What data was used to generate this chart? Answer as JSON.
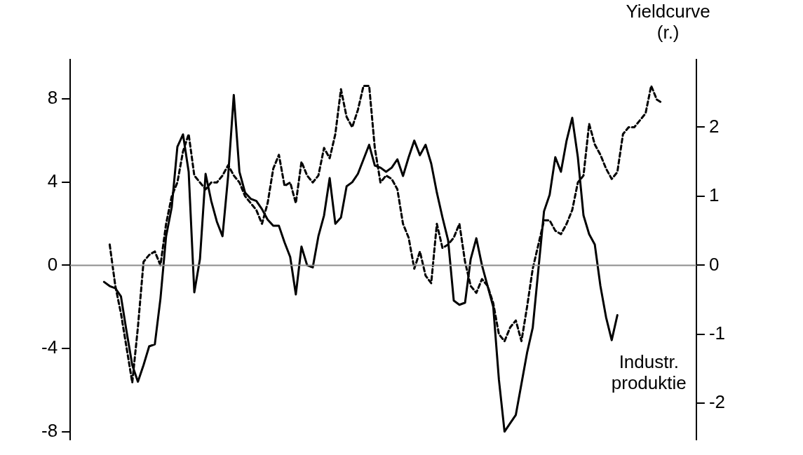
{
  "chart_data": {
    "type": "line",
    "categories": [
      null,
      null,
      null,
      null,
      null,
      null,
      null,
      null,
      null,
      null,
      null,
      null,
      null,
      null,
      null,
      null,
      null,
      null,
      null,
      null,
      null,
      null,
      null,
      null,
      null,
      null,
      null,
      null,
      null,
      null,
      null,
      null,
      null,
      null,
      null,
      null,
      null,
      null,
      null,
      null,
      null,
      null,
      null,
      null,
      null,
      null,
      null,
      null,
      null,
      null,
      null,
      null,
      null,
      null,
      null,
      null,
      null,
      null,
      null,
      null,
      null,
      null,
      null,
      null,
      null,
      null,
      null,
      null,
      null,
      null,
      null,
      null,
      null,
      null,
      null,
      null,
      null,
      null,
      null,
      null,
      null,
      null,
      null,
      null,
      null,
      null,
      null,
      null,
      null,
      null,
      null,
      null,
      null,
      null,
      null,
      null,
      null,
      null,
      null,
      null,
      null,
      null,
      null,
      null,
      null,
      null,
      null,
      null,
      null,
      null,
      null,
      null
    ],
    "series": [
      {
        "name": "Industr. produktie",
        "color": "#000000",
        "line_style": "solid",
        "axis": "y",
        "values": [
          null,
          null,
          null,
          null,
          null,
          null,
          -0.8,
          -1.0,
          -1.1,
          -1.5,
          -3.2,
          -4.8,
          -5.6,
          -4.8,
          -3.9,
          -3.8,
          -1.6,
          1.4,
          2.8,
          5.7,
          6.3,
          4.5,
          -1.3,
          0.3,
          4.4,
          3.1,
          2.1,
          1.4,
          4.3,
          8.2,
          4.5,
          3.5,
          3.2,
          3.1,
          2.7,
          2.2,
          1.9,
          1.9,
          1.1,
          0.4,
          -1.4,
          0.9,
          0.0,
          -0.1,
          1.4,
          2.4,
          4.2,
          2.0,
          2.3,
          3.8,
          4.0,
          4.4,
          5.1,
          5.8,
          4.8,
          4.7,
          4.5,
          4.7,
          5.1,
          4.3,
          5.2,
          6.0,
          5.3,
          5.8,
          4.9,
          3.5,
          2.3,
          1.2,
          -1.7,
          -1.9,
          -1.8,
          0.3,
          1.3,
          0.0,
          -1.0,
          -2.0,
          -5.5,
          -8.0,
          -7.6,
          -7.2,
          -5.7,
          -4.2,
          -3.0,
          -0.2,
          2.6,
          3.4,
          5.2,
          4.5,
          6.0,
          7.1,
          5.2,
          2.4,
          1.5,
          1.0,
          -1.0,
          -2.5,
          -3.6,
          -2.4,
          null,
          null,
          null,
          null,
          null,
          null,
          null,
          null,
          null,
          null,
          null,
          null,
          null,
          null
        ]
      },
      {
        "name": "Yieldcurve (r.)",
        "color": "#000000",
        "line_style": "dashed",
        "axis": "y2",
        "values": [
          null,
          null,
          null,
          null,
          null,
          null,
          null,
          0.3,
          -0.3,
          -0.7,
          -1.2,
          -1.7,
          -0.9,
          0.05,
          0.15,
          0.2,
          0.0,
          0.6,
          1.0,
          1.2,
          1.65,
          1.9,
          1.3,
          1.2,
          1.1,
          1.2,
          1.2,
          1.3,
          1.45,
          1.3,
          1.2,
          1.0,
          0.9,
          0.8,
          0.6,
          0.9,
          1.4,
          1.6,
          1.15,
          1.2,
          0.9,
          1.5,
          1.3,
          1.2,
          1.3,
          1.7,
          1.55,
          1.9,
          2.55,
          2.15,
          2.0,
          2.25,
          2.6,
          2.6,
          1.7,
          1.2,
          1.3,
          1.25,
          1.1,
          0.6,
          0.4,
          -0.05,
          0.2,
          -0.15,
          -0.26,
          0.6,
          0.25,
          0.3,
          0.4,
          0.6,
          0.05,
          -0.3,
          -0.4,
          -0.2,
          -0.3,
          -0.55,
          -1.0,
          -1.1,
          -0.9,
          -0.8,
          -1.1,
          -0.6,
          -0.05,
          0.3,
          0.65,
          0.65,
          0.5,
          0.45,
          0.6,
          0.8,
          1.2,
          1.3,
          2.05,
          1.75,
          1.6,
          1.4,
          1.25,
          1.35,
          1.9,
          2.0,
          2.0,
          2.1,
          2.2,
          2.6,
          2.4,
          2.35,
          null,
          null,
          null,
          null,
          null,
          null
        ]
      }
    ],
    "ylim": [
      -8.4,
      9.9
    ],
    "yticks": [
      -8,
      -4,
      0,
      4,
      8
    ],
    "y2lim": [
      -2.53,
      2.98
    ],
    "y2ticks": [
      -2,
      -1,
      0,
      1,
      2
    ],
    "tick_labels": "y",
    "ref_lines": [
      {
        "axis": "y",
        "value": 0,
        "color": "#8c8c8c"
      }
    ],
    "grid": false,
    "legend": false,
    "marker": "none"
  }
}
